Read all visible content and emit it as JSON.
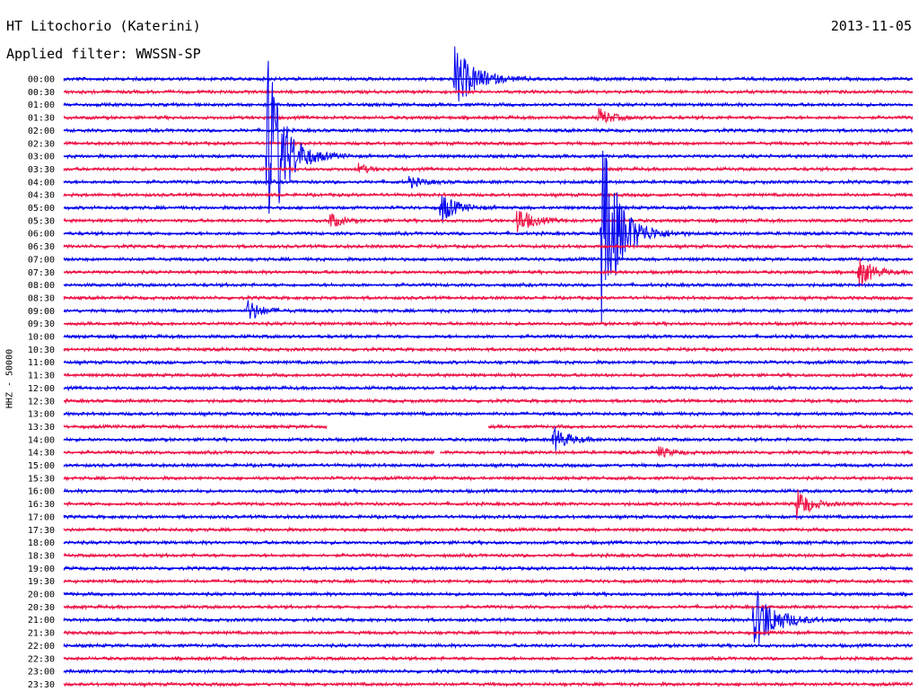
{
  "header": {
    "station": "HT Litochorio (Katerini)",
    "date": "2013-11-05",
    "filter": "Applied filter: WWSSN-SP",
    "channel": "HHZ - 50000"
  },
  "colors": {
    "even_trace": "#0000ee",
    "odd_trace": "#ee1144",
    "background": "#ffffff"
  },
  "chart_data": {
    "type": "line",
    "title": "HT Litochorio (Katerini)",
    "ylabel": "HHZ - 50000",
    "trace_labels": [
      "00:00",
      "00:30",
      "01:00",
      "01:30",
      "02:00",
      "02:30",
      "03:00",
      "03:30",
      "04:00",
      "04:30",
      "05:00",
      "05:30",
      "06:00",
      "06:30",
      "07:00",
      "07:30",
      "08:00",
      "08:30",
      "09:00",
      "09:30",
      "10:00",
      "10:30",
      "11:00",
      "11:30",
      "12:00",
      "12:30",
      "13:00",
      "13:30",
      "14:00",
      "14:30",
      "15:00",
      "15:30",
      "16:00",
      "16:30",
      "17:00",
      "17:30",
      "18:00",
      "18:30",
      "19:00",
      "19:30",
      "20:00",
      "20:30",
      "21:00",
      "21:30",
      "22:00",
      "22:30",
      "23:00",
      "23:30"
    ],
    "trace_duration_min": 30,
    "events": [
      {
        "trace": 0,
        "minute": 13.8,
        "amplitude": 36,
        "duration_min": 1.2
      },
      {
        "trace": 3,
        "minute": 18.9,
        "amplitude": 10,
        "duration_min": 0.8
      },
      {
        "trace": 6,
        "minute": 7.2,
        "amplitude": 120,
        "duration_min": 1.0
      },
      {
        "trace": 7,
        "minute": 10.4,
        "amplitude": 6,
        "duration_min": 0.6
      },
      {
        "trace": 8,
        "minute": 12.2,
        "amplitude": 6,
        "duration_min": 0.8
      },
      {
        "trace": 10,
        "minute": 13.3,
        "amplitude": 20,
        "duration_min": 0.8
      },
      {
        "trace": 11,
        "minute": 9.4,
        "amplitude": 10,
        "duration_min": 0.6
      },
      {
        "trace": 11,
        "minute": 16.0,
        "amplitude": 16,
        "duration_min": 0.9
      },
      {
        "trace": 12,
        "minute": 19.0,
        "amplitude": 110,
        "duration_min": 1.1
      },
      {
        "trace": 15,
        "minute": 28.1,
        "amplitude": 18,
        "duration_min": 0.8
      },
      {
        "trace": 18,
        "minute": 6.5,
        "amplitude": 14,
        "duration_min": 0.7
      },
      {
        "trace": 28,
        "minute": 17.3,
        "amplitude": 14,
        "duration_min": 0.9
      },
      {
        "trace": 29,
        "minute": 21.0,
        "amplitude": 6,
        "duration_min": 0.8
      },
      {
        "trace": 33,
        "minute": 25.9,
        "amplitude": 18,
        "duration_min": 0.8
      },
      {
        "trace": 42,
        "minute": 24.4,
        "amplitude": 38,
        "duration_min": 1.2
      }
    ],
    "gaps": [
      {
        "trace": 27,
        "start_min": 9.3,
        "end_min": 15.0
      },
      {
        "trace": 29,
        "start_min": 13.1,
        "end_min": 13.3
      }
    ]
  }
}
